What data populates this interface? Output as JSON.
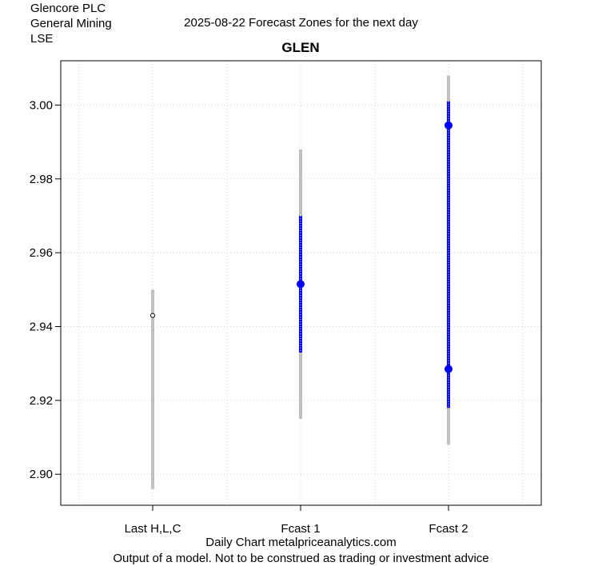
{
  "header": {
    "company": "Glencore PLC",
    "sector": "General Mining",
    "exchange": "LSE",
    "title": "2025-08-22 Forecast Zones for the next day"
  },
  "footer": {
    "line1": "Daily Chart metalpriceanalytics.com",
    "line2": "Output of a model. Not to be construed as trading or investment advice"
  },
  "colors": {
    "range_gray": "#c0c0c0",
    "zone_blue": "#0000ff",
    "grid": "#d3d3d3"
  },
  "chart_data": {
    "type": "range",
    "title": "GLEN",
    "categories": [
      "Last H,L,C",
      "Fcast 1",
      "Fcast 2"
    ],
    "ylim": [
      2.8916,
      3.012
    ],
    "yticks": [
      2.9,
      2.92,
      2.94,
      2.96,
      2.98,
      3.0
    ],
    "ytick_labels": [
      "2.90",
      "2.92",
      "2.94",
      "2.96",
      "2.98",
      "3.00"
    ],
    "grid": true,
    "last": {
      "high": 2.95,
      "low": 2.896,
      "close": 2.943
    },
    "forecasts": [
      {
        "outer_high": 2.988,
        "outer_low": 2.915,
        "inner_high": 2.97,
        "inner_low": 2.933,
        "points": [
          2.9515
        ]
      },
      {
        "outer_high": 3.008,
        "outer_low": 2.908,
        "inner_high": 3.001,
        "inner_low": 2.918,
        "points": [
          2.9945,
          2.9285
        ]
      }
    ]
  }
}
